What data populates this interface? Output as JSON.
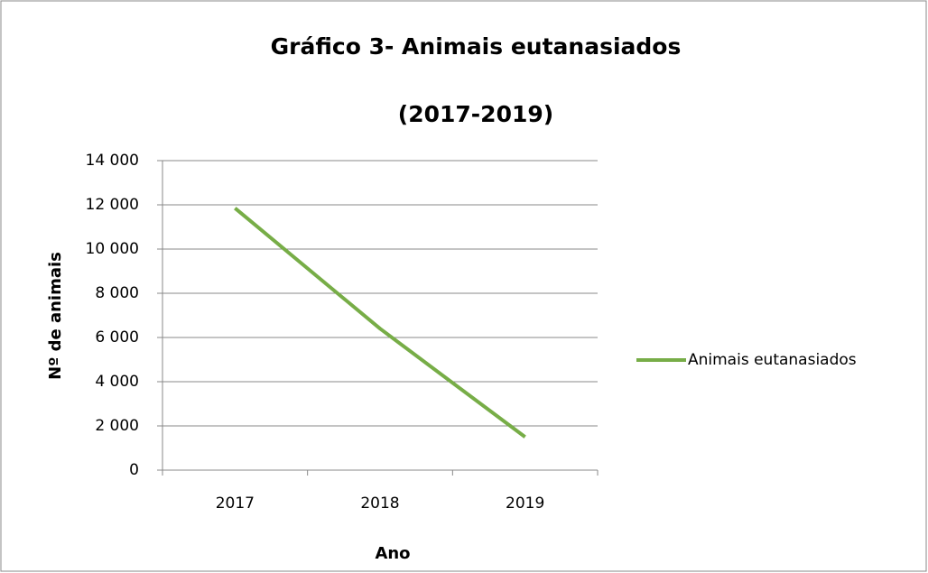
{
  "chart_data": {
    "type": "line",
    "title": "Gráfico 3- Animais eutanasiados",
    "subtitle": "(2017-2019)",
    "x_label": "Ano",
    "y_label": "Nº de animais",
    "categories": [
      "2017",
      "2018",
      "2019"
    ],
    "series": [
      {
        "name": "Animais eutanasiados",
        "color": "#77ad47",
        "values": [
          11850,
          6400,
          1500
        ]
      }
    ],
    "ylim": [
      0,
      14000
    ],
    "yticks": [
      0,
      {
        "value": 2000,
        "label": "2 000"
      },
      {
        "value": 4000,
        "label": "4 000"
      },
      {
        "value": 6000,
        "label": "6 000"
      },
      {
        "value": 8000,
        "label": "8 000"
      },
      {
        "value": 10000,
        "label": "10 000"
      },
      {
        "value": 12000,
        "label": "12 000"
      },
      {
        "value": 14000,
        "label": "14 000"
      }
    ],
    "grid": true,
    "legend": "right"
  }
}
